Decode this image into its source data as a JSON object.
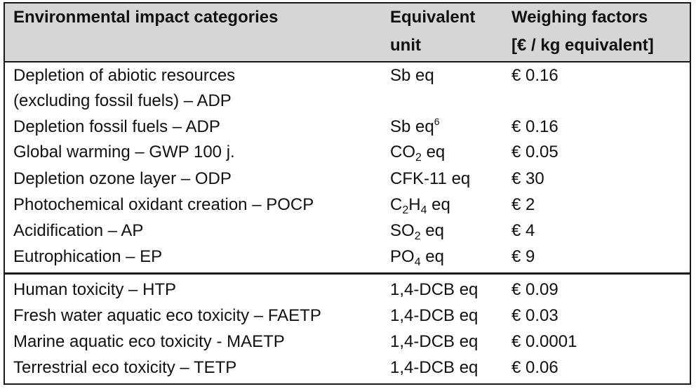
{
  "header": {
    "col1": "Environmental impact categories",
    "col2_line1": "Equivalent",
    "col2_line2": "unit",
    "col3_line1": "Weighing factors",
    "col3_line2": "[€ / kg equivalent]"
  },
  "rows": [
    {
      "category_line1": "Depletion of abiotic resources",
      "category_line2": "(excluding fossil fuels) – ADP",
      "unit": "Sb eq",
      "factor": "€ 0.16"
    },
    {
      "category": "Depletion fossil fuels – ADP",
      "unit_main": "Sb eq",
      "unit_sup": "6",
      "factor": "€ 0.16"
    },
    {
      "category": "Global warming – GWP 100 j.",
      "unit_pre": "CO",
      "unit_sub": "2",
      "unit_post": " eq",
      "factor": "€ 0.05"
    },
    {
      "category": "Depletion ozone layer – ODP",
      "unit": "CFK-11 eq",
      "factor": "€ 30"
    },
    {
      "category": "Photochemical oxidant creation – POCP",
      "unit_a": "C",
      "unit_sub1": "2",
      "unit_b": "H",
      "unit_sub2": "4",
      "unit_post": " eq",
      "factor": "€ 2"
    },
    {
      "category": "Acidification – AP",
      "unit_pre": "SO",
      "unit_sub": "2",
      "unit_post": " eq",
      "factor": "€ 4"
    },
    {
      "category": "Eutrophication – EP",
      "unit_pre": "PO",
      "unit_sub": "4",
      "unit_post": " eq",
      "factor": "€ 9"
    },
    {
      "category": "Human toxicity – HTP",
      "unit": "1,4-DCB eq",
      "factor": "€ 0.09"
    },
    {
      "category": "Fresh water aquatic eco toxicity – FAETP",
      "unit": "1,4-DCB eq",
      "factor": "€ 0.03"
    },
    {
      "category": "Marine aquatic eco toxicity - MAETP",
      "unit": "1,4-DCB eq",
      "factor": "€ 0.0001"
    },
    {
      "category": "Terrestrial eco toxicity – TETP",
      "unit": "1,4-DCB eq",
      "factor": "€ 0.06"
    }
  ]
}
